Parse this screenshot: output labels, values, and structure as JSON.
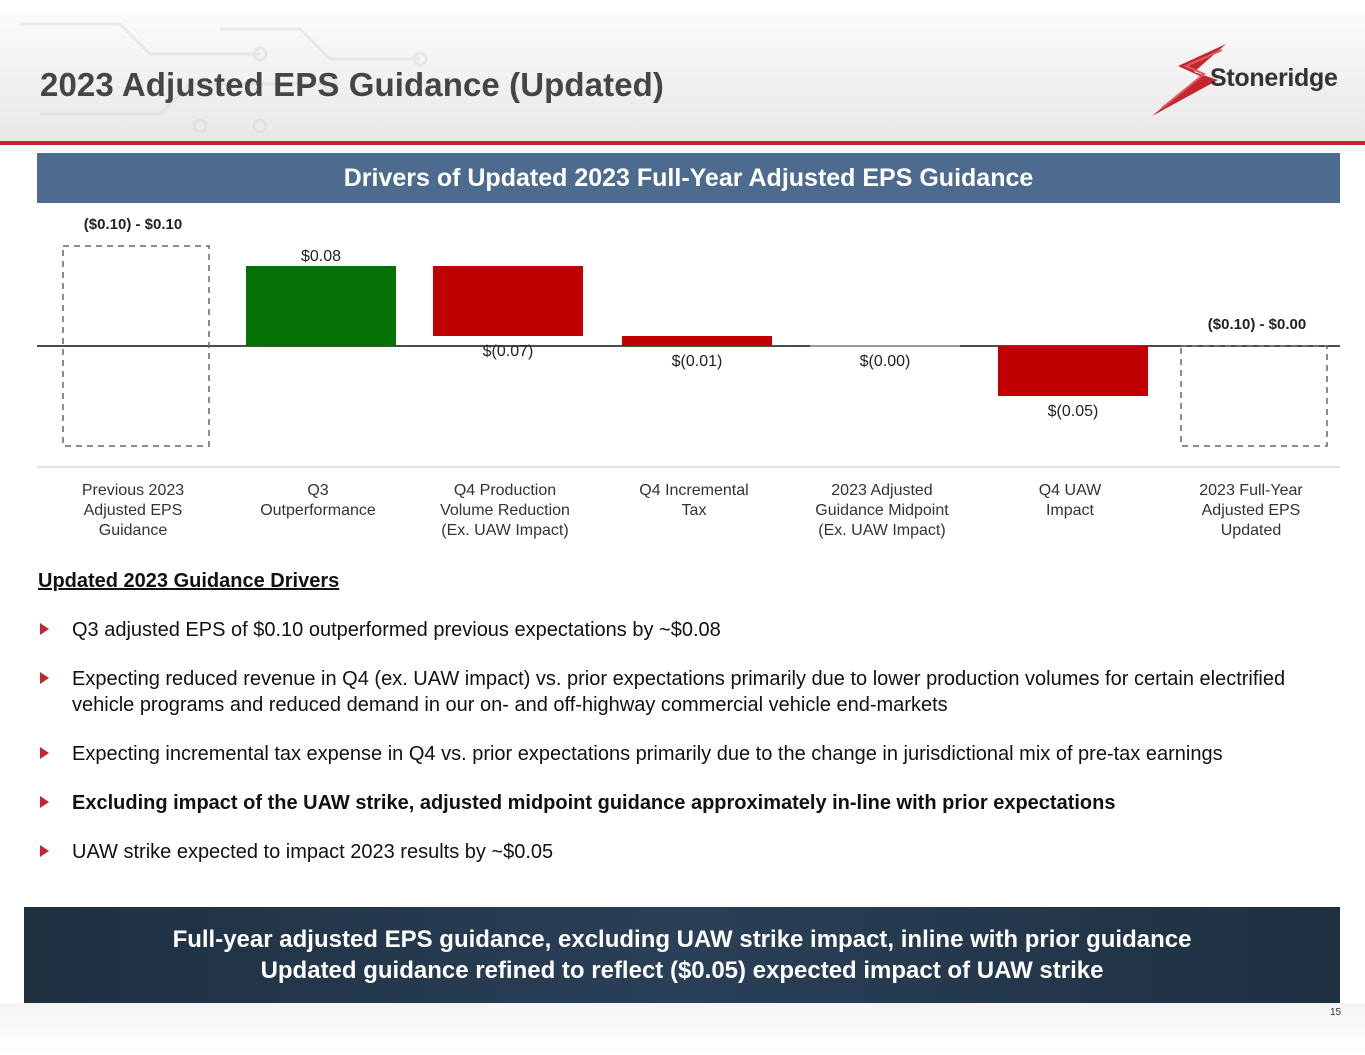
{
  "page": {
    "title": "2023 Adjusted EPS Guidance (Updated)",
    "logo_text": "Stoneridge",
    "page_number": "15",
    "accent_color": "#c4262e",
    "banner_color": "#4d6b8f"
  },
  "banner": {
    "title": "Drivers of Updated 2023 Full-Year Adjusted EPS Guidance"
  },
  "chart_data": {
    "type": "bar",
    "subtype": "waterfall",
    "title": "Drivers of Updated 2023 Full-Year Adjusted EPS Guidance",
    "categories": [
      [
        "Previous 2023",
        "Adjusted EPS",
        "Guidance"
      ],
      [
        "Q3",
        "Outperformance"
      ],
      [
        "Q4 Production",
        "Volume Reduction",
        "(Ex. UAW Impact)"
      ],
      [
        "Q4 Incremental",
        "Tax"
      ],
      [
        "2023 Adjusted",
        "Guidance Midpoint",
        "(Ex. UAW Impact)"
      ],
      [
        "Q4 UAW",
        "Impact"
      ],
      [
        "2023 Full-Year",
        "Adjusted EPS",
        "Updated"
      ]
    ],
    "bars": [
      {
        "kind": "range",
        "low": -0.1,
        "high": 0.1,
        "label": "($0.10) - $0.10"
      },
      {
        "kind": "delta",
        "start": 0.0,
        "value": 0.08,
        "label": "$0.08",
        "color": "#047204"
      },
      {
        "kind": "delta",
        "start": 0.08,
        "value": -0.07,
        "label": "$(0.07)",
        "color": "#c00000"
      },
      {
        "kind": "delta",
        "start": 0.01,
        "value": -0.01,
        "label": "$(0.01)",
        "color": "#c00000"
      },
      {
        "kind": "delta",
        "start": 0.0,
        "value": 0.0,
        "label": "$(0.00)",
        "color": "#a0a0a0"
      },
      {
        "kind": "delta",
        "start": 0.0,
        "value": -0.05,
        "label": "$(0.05)",
        "color": "#c00000"
      },
      {
        "kind": "range",
        "low": -0.1,
        "high": 0.0,
        "label": "($0.10) - $0.00"
      }
    ],
    "ylim": [
      -0.1,
      0.1
    ],
    "xlabel": "",
    "ylabel": ""
  },
  "drivers": {
    "heading": "Updated 2023 Guidance Drivers",
    "bullets": [
      {
        "text": "Q3 adjusted EPS of $0.10 outperformed previous expectations by ~$0.08",
        "bold": false
      },
      {
        "text": "Expecting reduced revenue in Q4 (ex. UAW impact) vs. prior expectations primarily due to lower production volumes for certain electrified vehicle programs and reduced demand in our on- and off-highway commercial vehicle end-markets",
        "bold": false
      },
      {
        "text": "Expecting incremental tax expense in Q4 vs. prior expectations primarily due to the change in jurisdictional mix of pre-tax earnings",
        "bold": false
      },
      {
        "text": "Excluding impact of the UAW strike, adjusted midpoint guidance approximately in-line with prior expectations",
        "bold": true
      },
      {
        "text": "UAW strike expected to impact 2023 results by ~$0.05",
        "bold": false
      }
    ]
  },
  "footer": {
    "line1": "Full-year adjusted EPS guidance, excluding UAW strike impact, inline with prior guidance",
    "line2": "Updated guidance refined to reflect ($0.05) expected impact of UAW strike"
  }
}
